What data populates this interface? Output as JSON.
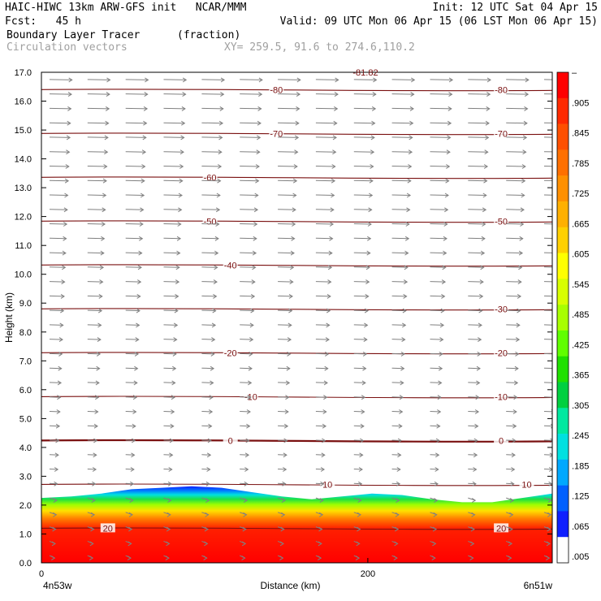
{
  "header": {
    "left_line1": "HAIC-HIWC 13km ARW-GFS init   NCAR/MMM",
    "left_line2": "Fcst:   45 h",
    "right_line1": "Init: 12 UTC Sat 04 Apr 15",
    "right_line2": "Valid: 09 UTC Mon 06 Apr 15 (06 LST Mon 06 Apr 15)",
    "field1_name": "Boundary Layer Tracer",
    "field1_units": "(fraction)",
    "field2_name": "Circulation vectors",
    "xy_range": "XY= 259.5, 91.6 to 274.6,110.2"
  },
  "colors": {
    "contour": "#7a1010",
    "vector": "#808080",
    "axis": "#000000"
  },
  "chart_data": {
    "type": "heatmap",
    "xlabel": "Distance (km)",
    "ylabel": "Height (km)",
    "x_ticks": [
      "0",
      "200"
    ],
    "x_end_labels": {
      "left": "4n53w",
      "right": "6n51w"
    },
    "x_range": [
      0,
      313
    ],
    "y_range": [
      0,
      17
    ],
    "y_ticks": [
      "0.0",
      "1.0",
      "2.0",
      "3.0",
      "4.0",
      "5.0",
      "6.0",
      "7.0",
      "8.0",
      "9.0",
      "10.0",
      "11.0",
      "12.0",
      "13.0",
      "14.0",
      "15.0",
      "16.0",
      "17.0"
    ],
    "top_annotation": "-81.82",
    "colorbar": {
      "labels": [
        "–",
        ".905",
        ".845",
        ".785",
        ".725",
        ".665",
        ".605",
        ".545",
        ".485",
        ".425",
        ".365",
        ".305",
        ".245",
        ".185",
        ".125",
        ".065",
        ".005"
      ],
      "colors": [
        "#ff0000",
        "#ff2a00",
        "#ff5000",
        "#ff7000",
        "#ff9000",
        "#ffb000",
        "#ffd000",
        "#ffff00",
        "#d8ff00",
        "#a8ff00",
        "#60ff00",
        "#20e000",
        "#00d040",
        "#00e8a0",
        "#00e0e0",
        "#00a8ff",
        "#0060ff",
        "#1020ff",
        "#ffffff"
      ]
    },
    "tracer_top_height_km": [
      2.25,
      2.3,
      2.4,
      2.55,
      2.6,
      2.65,
      2.6,
      2.45,
      2.3,
      2.2,
      2.3,
      2.4,
      2.35,
      2.2,
      2.1,
      2.1,
      2.25,
      2.4
    ],
    "contour_levels": [
      {
        "value": "-80",
        "labels": [
          {
            "text": "-80",
            "x": 0.46
          },
          {
            "text": "-80",
            "x": 0.9
          }
        ]
      },
      {
        "value": "-70",
        "labels": [
          {
            "text": "-70",
            "x": 0.46
          },
          {
            "text": "-70",
            "x": 0.9
          }
        ]
      },
      {
        "value": "-60",
        "labels": [
          {
            "text": "-60",
            "x": 0.33
          }
        ]
      },
      {
        "value": "-50",
        "labels": [
          {
            "text": "-50",
            "x": 0.33
          },
          {
            "text": "-50",
            "x": 0.9
          }
        ]
      },
      {
        "value": "-40",
        "labels": [
          {
            "text": "-40",
            "x": 0.37
          }
        ]
      },
      {
        "value": "-30",
        "labels": [
          {
            "text": "-30",
            "x": 0.9
          }
        ]
      },
      {
        "value": "-20",
        "labels": [
          {
            "text": "-20",
            "x": 0.37
          },
          {
            "text": "-20",
            "x": 0.9
          }
        ]
      },
      {
        "value": "-10",
        "labels": [
          {
            "text": "-10",
            "x": 0.41
          },
          {
            "text": "-10",
            "x": 0.9
          }
        ]
      },
      {
        "value": "0",
        "labels": [
          {
            "text": "0",
            "x": 0.37
          },
          {
            "text": "0",
            "x": 0.9
          }
        ]
      },
      {
        "value": "10",
        "labels": [
          {
            "text": "10",
            "x": 0.56
          },
          {
            "text": "10",
            "x": 0.95
          }
        ]
      },
      {
        "value": "20",
        "labels": [
          {
            "text": "20",
            "x": 0.13
          },
          {
            "text": "20",
            "x": 0.9
          }
        ]
      }
    ]
  }
}
